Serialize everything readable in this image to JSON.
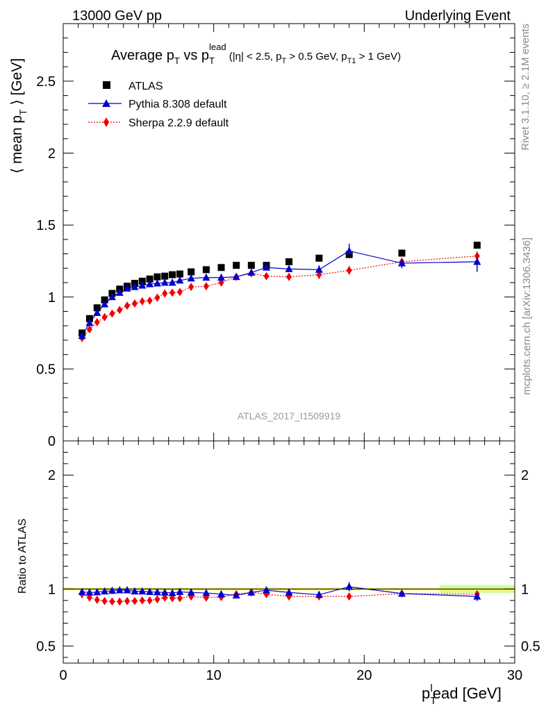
{
  "header": {
    "left": "13000 GeV pp",
    "right": "Underlying Event"
  },
  "side": {
    "rivet": "Rivet 3.1.10, ≥ 2.1M events",
    "mcplots": "mcplots.cern.ch [arXiv:1306.3436]"
  },
  "watermark": "ATLAS_2017_I1509919",
  "colors": {
    "atlas": "#000000",
    "pythia": "#0000cc",
    "sherpa": "#ee0000",
    "band_inner": "#ffff66",
    "band_outer": "#ccff99"
  },
  "chart_data": [
    {
      "type": "scatter",
      "panel": "main",
      "title": {
        "main": "Average p",
        "sub1": "T",
        "vs": " vs p",
        "sub2": "T",
        "sup2": "lead",
        "cond1": " (|η| < 2.5, p",
        "cond_sub1": "T",
        "cond2": " > 0.5 GeV, p",
        "cond_sub2": "T1",
        "cond3": " > 1 GeV)"
      },
      "ylabel": {
        "a": "⟨ mean p",
        "sub": "T",
        "b": " ⟩ [GeV]"
      },
      "xlim": [
        0,
        30
      ],
      "ylim": [
        0,
        2.9
      ],
      "yticks": [
        "0",
        "0.5",
        "1",
        "1.5",
        "2",
        "2.5"
      ],
      "legend_position": "top-left",
      "series": [
        {
          "name": "ATLAS",
          "marker": "square",
          "x": [
            1.25,
            1.75,
            2.25,
            2.75,
            3.25,
            3.75,
            4.25,
            4.75,
            5.25,
            5.75,
            6.25,
            6.75,
            7.25,
            7.75,
            8.5,
            9.5,
            10.5,
            11.5,
            12.5,
            13.5,
            15,
            17,
            19,
            22.5,
            27.5
          ],
          "y": [
            0.75,
            0.85,
            0.925,
            0.98,
            1.025,
            1.055,
            1.075,
            1.095,
            1.11,
            1.125,
            1.14,
            1.145,
            1.155,
            1.16,
            1.175,
            1.19,
            1.205,
            1.22,
            1.22,
            1.22,
            1.245,
            1.27,
            1.295,
            1.305,
            1.36
          ]
        },
        {
          "name": "Pythia 8.308 default",
          "marker": "triangle",
          "line": "solid",
          "x": [
            1.25,
            1.75,
            2.25,
            2.75,
            3.25,
            3.75,
            4.25,
            4.75,
            5.25,
            5.75,
            6.25,
            6.75,
            7.25,
            7.75,
            8.5,
            9.5,
            10.5,
            11.5,
            12.5,
            13.5,
            15,
            17,
            19,
            22.5,
            27.5
          ],
          "y": [
            0.73,
            0.82,
            0.89,
            0.95,
            1.0,
            1.03,
            1.06,
            1.07,
            1.08,
            1.09,
            1.095,
            1.1,
            1.1,
            1.115,
            1.13,
            1.135,
            1.135,
            1.14,
            1.17,
            1.205,
            1.195,
            1.19,
            1.32,
            1.235,
            1.245
          ],
          "err": [
            0,
            0,
            0,
            0,
            0,
            0,
            0,
            0,
            0,
            0,
            0,
            0,
            0,
            0,
            0,
            0,
            0,
            0,
            0,
            0.01,
            0.015,
            0.03,
            0.05,
            0.035,
            0.07
          ]
        },
        {
          "name": "Sherpa 2.2.9 default",
          "marker": "diamond",
          "line": "dotted",
          "x": [
            1.25,
            1.75,
            2.25,
            2.75,
            3.25,
            3.75,
            4.25,
            4.75,
            5.25,
            5.75,
            6.25,
            6.75,
            7.25,
            7.75,
            8.5,
            9.5,
            10.5,
            11.5,
            12.5,
            13.5,
            15,
            17,
            19,
            22.5,
            27.5
          ],
          "y": [
            0.715,
            0.775,
            0.825,
            0.86,
            0.885,
            0.91,
            0.94,
            0.955,
            0.97,
            0.975,
            0.995,
            1.025,
            1.03,
            1.035,
            1.07,
            1.075,
            1.1,
            1.14,
            1.165,
            1.145,
            1.14,
            1.155,
            1.185,
            1.245,
            1.285
          ],
          "err": [
            0,
            0,
            0,
            0,
            0,
            0,
            0,
            0,
            0,
            0,
            0,
            0,
            0,
            0,
            0,
            0,
            0,
            0,
            0.01,
            0.02,
            0.02,
            0.03,
            0.03,
            0.02,
            0.02
          ]
        }
      ]
    },
    {
      "type": "scatter",
      "panel": "ratio",
      "ylabel": "Ratio to ATLAS",
      "xlabel": {
        "a": "p",
        "sub": "T",
        "sup": "l",
        "b": "ead [GeV]"
      },
      "xlim": [
        0,
        30
      ],
      "ylim": [
        0.35,
        2.3
      ],
      "xticks": [
        "0",
        "10",
        "20",
        "30"
      ],
      "yticks": [
        "0.5",
        "1",
        "2"
      ],
      "series": [
        {
          "name": "Pythia 8.308 default",
          "x": [
            1.25,
            1.75,
            2.25,
            2.75,
            3.25,
            3.75,
            4.25,
            4.75,
            5.25,
            5.75,
            6.25,
            6.75,
            7.25,
            7.75,
            8.5,
            9.5,
            10.5,
            11.5,
            12.5,
            13.5,
            15,
            17,
            19,
            22.5,
            27.5
          ],
          "y": [
            0.975,
            0.97,
            0.972,
            0.98,
            0.985,
            0.99,
            0.99,
            0.98,
            0.98,
            0.975,
            0.972,
            0.97,
            0.965,
            0.975,
            0.97,
            0.965,
            0.955,
            0.945,
            0.97,
            0.99,
            0.97,
            0.95,
            1.02,
            0.96,
            0.935
          ],
          "err": [
            0,
            0,
            0,
            0,
            0,
            0,
            0,
            0,
            0,
            0,
            0,
            0,
            0,
            0,
            0,
            0,
            0,
            0,
            0,
            0.012,
            0.012,
            0.025,
            0.04,
            0.02,
            0.04
          ]
        },
        {
          "name": "Sherpa 2.2.9 default",
          "x": [
            1.25,
            1.75,
            2.25,
            2.75,
            3.25,
            3.75,
            4.25,
            4.75,
            5.25,
            5.75,
            6.25,
            6.75,
            7.25,
            7.75,
            8.5,
            9.5,
            10.5,
            11.5,
            12.5,
            13.5,
            15,
            17,
            19,
            22.5,
            27.5
          ],
          "y": [
            0.955,
            0.925,
            0.905,
            0.895,
            0.89,
            0.89,
            0.895,
            0.895,
            0.9,
            0.9,
            0.91,
            0.925,
            0.92,
            0.92,
            0.935,
            0.925,
            0.93,
            0.955,
            0.97,
            0.955,
            0.935,
            0.935,
            0.935,
            0.96,
            0.955
          ],
          "err": [
            0,
            0,
            0,
            0,
            0,
            0,
            0,
            0,
            0,
            0,
            0,
            0,
            0,
            0,
            0,
            0,
            0,
            0,
            0,
            0,
            0.015,
            0.02,
            0.02,
            0.015,
            0.02
          ]
        }
      ]
    }
  ]
}
